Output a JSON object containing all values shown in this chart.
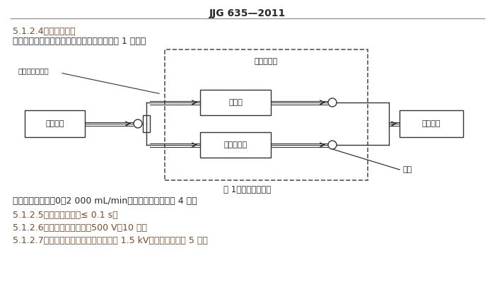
{
  "title": "JJG 635—2011",
  "header_line_color": "#999999",
  "bg_color": "#ffffff",
  "heading_color": "#8B4513",
  "body_color": "#2a2a2a",
  "diagram_color": "#333333",
  "section_424": "5.1.2.4　流量控制器",
  "section_424_body": "　　流量控制器由两个气体流量计组成。如图 1 所示。",
  "fig_caption": "图 1　付器检定框图",
  "body_line1": "　　气体流量计：0～2 000 mL/min，准确度级别不低于 4 级。",
  "section_425": "5.1.2.5　秒表：分辨力≤ 0.1 s。",
  "section_426": "5.1.2.6　绣缘电阔测试仪：500 V，10 级。",
  "section_427": "5.1.2.7　绣缘强度测试仪：电压不低于 1.5 kV，准确度级别为 5 级。",
  "label_inlet": "流量控制器入口",
  "label_std": "标准气体",
  "label_flowmeter": "流量计",
  "label_bypass": "旁通流量计",
  "label_detector": "被检仪器",
  "label_controller": "流量控制器",
  "label_vent": "放空"
}
